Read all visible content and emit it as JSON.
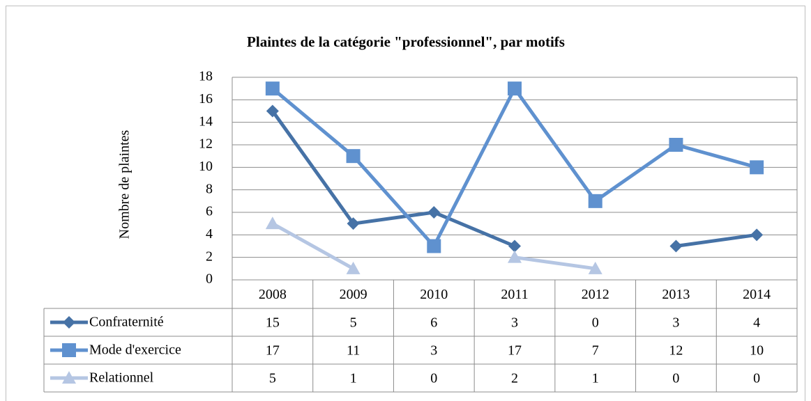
{
  "chart_data": {
    "type": "line",
    "title": "Plaintes de la catégorie \"professionnel\", par motifs",
    "y_label": "Nombre de plaintes",
    "categories": [
      "2008",
      "2009",
      "2010",
      "2011",
      "2012",
      "2013",
      "2014"
    ],
    "series": [
      {
        "name": "Confraternité",
        "color": "#4672a6",
        "marker": "diamond",
        "values": [
          15,
          5,
          6,
          3,
          null,
          3,
          4
        ],
        "value_labels": [
          "15",
          "5",
          "6",
          "3",
          "0",
          "3",
          "4"
        ]
      },
      {
        "name": "Mode d'exercice",
        "color": "#5f91cf",
        "marker": "square",
        "values": [
          17,
          11,
          3,
          17,
          7,
          12,
          10
        ],
        "value_labels": [
          "17",
          "11",
          "3",
          "17",
          "7",
          "12",
          "10"
        ]
      },
      {
        "name": "Relationnel",
        "color": "#b5c6e3",
        "marker": "triangle",
        "values": [
          5,
          1,
          null,
          2,
          1,
          null,
          null
        ],
        "value_labels": [
          "5",
          "1",
          "0",
          "2",
          "1",
          "0",
          "0"
        ]
      }
    ],
    "ylim": [
      0,
      18
    ],
    "yticks": [
      0,
      2,
      4,
      6,
      8,
      10,
      12,
      14,
      16,
      18
    ],
    "grid": true
  }
}
